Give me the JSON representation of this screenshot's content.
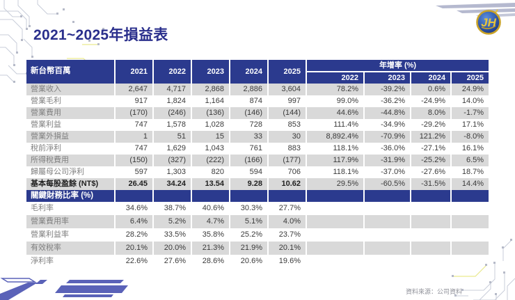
{
  "title": "2021~2025年損益表",
  "logo": {
    "text": "JH"
  },
  "table": {
    "unit_label": "新台幣百萬",
    "year_headers": [
      "2021",
      "2022",
      "2023",
      "2024",
      "2025"
    ],
    "yoy_group_label": "年增率 (%)",
    "yoy_year_headers": [
      "2022",
      "2023",
      "2024",
      "2025"
    ],
    "main_rows": [
      {
        "label": "營業收入",
        "values": [
          "2,647",
          "4,717",
          "2,868",
          "2,886",
          "3,604"
        ],
        "yoy": [
          "78.2%",
          "-39.2%",
          "0.6%",
          "24.9%"
        ]
      },
      {
        "label": "營業毛利",
        "values": [
          "917",
          "1,824",
          "1,164",
          "874",
          "997"
        ],
        "yoy": [
          "99.0%",
          "-36.2%",
          "-24.9%",
          "14.0%"
        ]
      },
      {
        "label": "營業費用",
        "values": [
          "(170)",
          "(246)",
          "(136)",
          "(146)",
          "(144)"
        ],
        "yoy": [
          "44.6%",
          "-44.8%",
          "8.0%",
          "-1.7%"
        ]
      },
      {
        "label": "營業利益",
        "values": [
          "747",
          "1,578",
          "1,028",
          "728",
          "853"
        ],
        "yoy": [
          "111.4%",
          "-34.9%",
          "-29.2%",
          "17.1%"
        ]
      },
      {
        "label": "營業外損益",
        "values": [
          "1",
          "51",
          "15",
          "33",
          "30"
        ],
        "yoy": [
          "8,892.4%",
          "-70.9%",
          "121.2%",
          "-8.0%"
        ]
      },
      {
        "label": "稅前淨利",
        "values": [
          "747",
          "1,629",
          "1,043",
          "761",
          "883"
        ],
        "yoy": [
          "118.1%",
          "-36.0%",
          "-27.1%",
          "16.1%"
        ]
      },
      {
        "label": "所得稅費用",
        "values": [
          "(150)",
          "(327)",
          "(222)",
          "(166)",
          "(177)"
        ],
        "yoy": [
          "117.9%",
          "-31.9%",
          "-25.2%",
          "6.5%"
        ]
      },
      {
        "label": "歸屬母公司淨利",
        "values": [
          "597",
          "1,303",
          "820",
          "594",
          "706"
        ],
        "yoy": [
          "118.1%",
          "-37.0%",
          "-27.6%",
          "18.7%"
        ]
      },
      {
        "label": "基本每股盈餘 (NT$)",
        "bold": true,
        "values": [
          "26.45",
          "34.24",
          "13.54",
          "9.28",
          "10.62"
        ],
        "yoy": [
          "29.5%",
          "-60.5%",
          "-31.5%",
          "14.4%"
        ]
      }
    ],
    "section_header": "關鍵財務比率 (%)",
    "ratio_rows": [
      {
        "label": "毛利率",
        "values": [
          "34.6%",
          "38.7%",
          "40.6%",
          "30.3%",
          "27.7%"
        ]
      },
      {
        "label": "營業費用率",
        "values": [
          "6.4%",
          "5.2%",
          "4.7%",
          "5.1%",
          "4.0%"
        ]
      },
      {
        "label": "營業利益率",
        "values": [
          "28.2%",
          "33.5%",
          "35.8%",
          "25.2%",
          "23.7%"
        ]
      },
      {
        "label": "有效稅率",
        "values": [
          "20.1%",
          "20.0%",
          "21.3%",
          "21.9%",
          "20.1%"
        ]
      },
      {
        "label": "淨利率",
        "values": [
          "22.6%",
          "27.6%",
          "28.6%",
          "20.6%",
          "19.6%"
        ]
      }
    ]
  },
  "footer": {
    "source": "資料來源：公司資料"
  },
  "colors": {
    "header_navy": "#2b3a8e",
    "row_gray": "#d9d9d9",
    "label_gray": "#7f7f7f",
    "value_dark": "#3a3a3a",
    "title_navy": "#2a2f8c",
    "swoosh_blue": "#5a62b8",
    "swoosh_silver": "#b5b9cf",
    "logo_gold": "#e8c43a",
    "logo_ring_gold": "#c9a227",
    "logo_blue": "#17337f",
    "circuit_gray": "#c9cdd9",
    "circuit_yellow": "#e9e98e"
  }
}
